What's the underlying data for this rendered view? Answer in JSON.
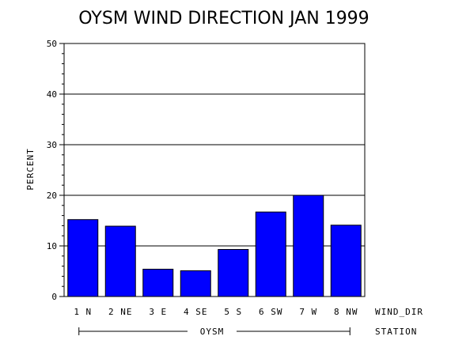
{
  "chart_data": {
    "type": "bar",
    "title": "OYSM WIND DIRECTION JAN 1999",
    "ylabel": "PERCENT",
    "xlabel": "WIND_DIR",
    "group_axis_label": "STATION",
    "group_label": "OYSM",
    "categories": [
      "1 N",
      "2 NE",
      "3 E",
      "4 SE",
      "5 S",
      "6 SW",
      "7 W",
      "8 NW"
    ],
    "values": [
      15.2,
      13.9,
      5.4,
      5.1,
      9.3,
      16.7,
      20.0,
      14.1
    ],
    "ylim": [
      0,
      50
    ],
    "yticks": [
      0,
      10,
      20,
      30,
      40,
      50
    ],
    "grid": true,
    "bar_color": "#0000ff"
  }
}
